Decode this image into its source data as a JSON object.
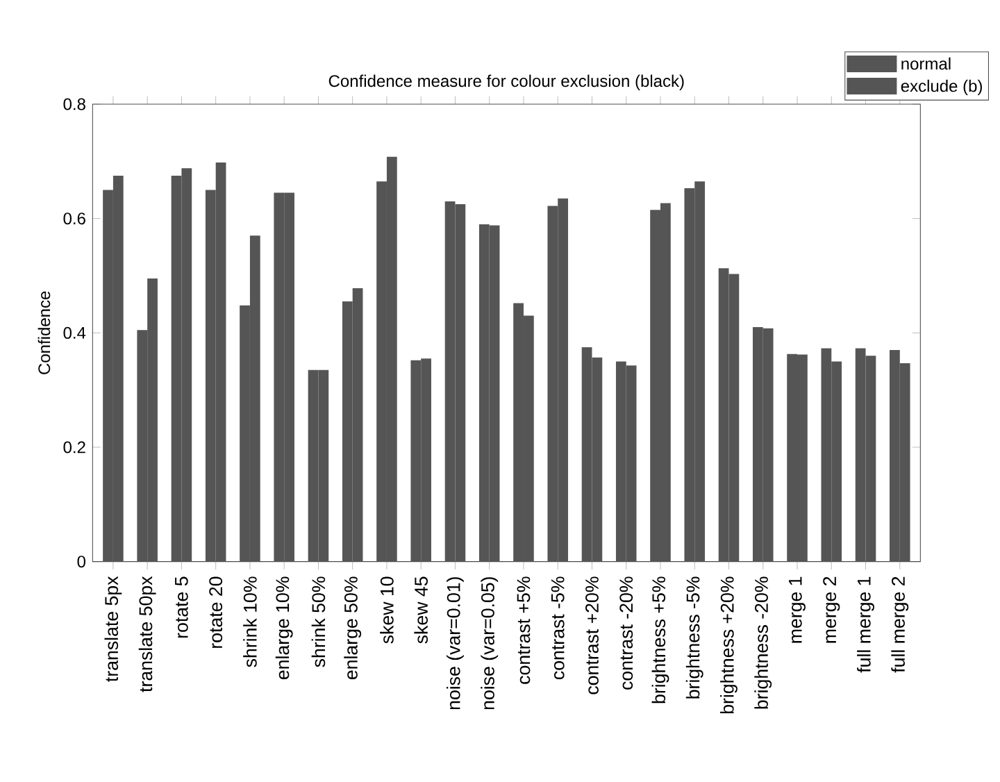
{
  "chart_data": {
    "type": "bar",
    "title": "Confidence measure for colour exclusion (black)",
    "ylabel": "Confidence",
    "categories": [
      "translate 5px",
      "translate 50px",
      "rotate 5",
      "rotate 20",
      "shrink 10%",
      "enlarge 10%",
      "shrink 50%",
      "enlarge 50%",
      "skew 10",
      "skew 45",
      "noise (var=0.01)",
      "noise (var=0.05)",
      "contrast +5%",
      "contrast -5%",
      "contrast +20%",
      "contrast -20%",
      "brightness +5%",
      "brightness -5%",
      "brightness +20%",
      "brightness -20%",
      "merge 1",
      "merge 2",
      "full merge 1",
      "full merge 2"
    ],
    "series": [
      {
        "name": "normal",
        "color": "#555555",
        "values": [
          0.65,
          0.405,
          0.675,
          0.65,
          0.448,
          0.645,
          0.335,
          0.455,
          0.665,
          0.352,
          0.63,
          0.59,
          0.452,
          0.622,
          0.375,
          0.35,
          0.615,
          0.653,
          0.513,
          0.41,
          0.363,
          0.373,
          0.373,
          0.37
        ]
      },
      {
        "name": "exclude (b)",
        "color": "#555555",
        "values": [
          0.675,
          0.495,
          0.688,
          0.698,
          0.57,
          0.645,
          0.335,
          0.478,
          0.708,
          0.355,
          0.625,
          0.588,
          0.43,
          0.635,
          0.357,
          0.343,
          0.627,
          0.665,
          0.503,
          0.408,
          0.362,
          0.35,
          0.36,
          0.347
        ]
      }
    ],
    "ylim": [
      0,
      0.8
    ],
    "yticks": [
      0,
      0.2,
      0.4,
      0.6,
      0.8
    ],
    "legend": "top right"
  }
}
